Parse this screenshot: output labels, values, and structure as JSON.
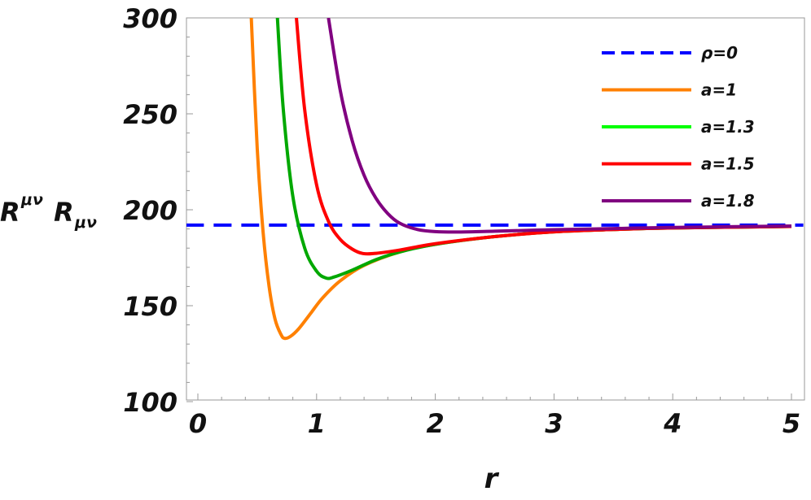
{
  "chart_data": {
    "type": "line",
    "title": "",
    "xlabel": "r",
    "ylabel": "R^{μν} R_{μν}",
    "ylabel_main": "R",
    "ylabel_sup": "μν",
    "ylabel_main2": "R",
    "ylabel_sub": "μν",
    "xlim": [
      -0.1,
      5.1
    ],
    "ylim": [
      100,
      300
    ],
    "xticks": [
      0,
      1,
      2,
      3,
      4,
      5
    ],
    "yticks": [
      100,
      150,
      200,
      250,
      300
    ],
    "grid": false,
    "legend_placement": "top-right",
    "series": [
      {
        "name": "ρ=0",
        "color": "#0000ff",
        "legend_color": "#0000ff",
        "dashed": true,
        "points": [
          [
            0,
            192
          ],
          [
            5,
            192
          ]
        ]
      },
      {
        "name": "a=1",
        "color": "#ff8000",
        "legend_color": "#ff8000",
        "dashed": false,
        "points": [
          [
            0.45,
            300
          ],
          [
            0.5,
            232
          ],
          [
            0.55,
            188
          ],
          [
            0.6,
            160
          ],
          [
            0.65,
            143
          ],
          [
            0.7,
            135
          ],
          [
            0.73,
            133
          ],
          [
            0.78,
            134
          ],
          [
            0.85,
            138
          ],
          [
            0.95,
            146
          ],
          [
            1.05,
            154
          ],
          [
            1.2,
            163
          ],
          [
            1.4,
            171
          ],
          [
            1.7,
            178
          ],
          [
            2,
            182
          ],
          [
            2.5,
            186
          ],
          [
            3,
            188.5
          ],
          [
            3.5,
            189.7
          ],
          [
            4,
            190.5
          ],
          [
            5,
            191.3
          ]
        ]
      },
      {
        "name": "a=1.3",
        "color": "#00a800",
        "legend_color": "#00ff00",
        "dashed": false,
        "points": [
          [
            0.67,
            300
          ],
          [
            0.72,
            252
          ],
          [
            0.8,
            207
          ],
          [
            0.9,
            180
          ],
          [
            1.0,
            168
          ],
          [
            1.08,
            164.4
          ],
          [
            1.15,
            165
          ],
          [
            1.3,
            168.5
          ],
          [
            1.5,
            174
          ],
          [
            1.7,
            178
          ],
          [
            2,
            182
          ],
          [
            2.5,
            186
          ],
          [
            3,
            188.5
          ],
          [
            3.5,
            189.7
          ],
          [
            4,
            190.5
          ],
          [
            5,
            191.3
          ]
        ]
      },
      {
        "name": "a=1.5",
        "color": "#ff0000",
        "legend_color": "#ff0000",
        "dashed": false,
        "points": [
          [
            0.83,
            300
          ],
          [
            0.9,
            252
          ],
          [
            1.0,
            213
          ],
          [
            1.1,
            194
          ],
          [
            1.2,
            184.5
          ],
          [
            1.3,
            179.5
          ],
          [
            1.39,
            177.2
          ],
          [
            1.5,
            177.3
          ],
          [
            1.7,
            179
          ],
          [
            2,
            182.3
          ],
          [
            2.5,
            186
          ],
          [
            3,
            188.5
          ],
          [
            3.5,
            189.7
          ],
          [
            4,
            190.5
          ],
          [
            5,
            191.3
          ]
        ]
      },
      {
        "name": "a=1.8",
        "color": "#800080",
        "legend_color": "#800080",
        "dashed": false,
        "points": [
          [
            1.1,
            300
          ],
          [
            1.2,
            262
          ],
          [
            1.3,
            236
          ],
          [
            1.4,
            218
          ],
          [
            1.5,
            206
          ],
          [
            1.6,
            198
          ],
          [
            1.7,
            193
          ],
          [
            1.85,
            189.7
          ],
          [
            2.0,
            188.6
          ],
          [
            2.2,
            188.4
          ],
          [
            2.5,
            188.8
          ],
          [
            3,
            189.6
          ],
          [
            3.5,
            190.2
          ],
          [
            4,
            190.8
          ],
          [
            5,
            191.5
          ]
        ]
      }
    ]
  }
}
